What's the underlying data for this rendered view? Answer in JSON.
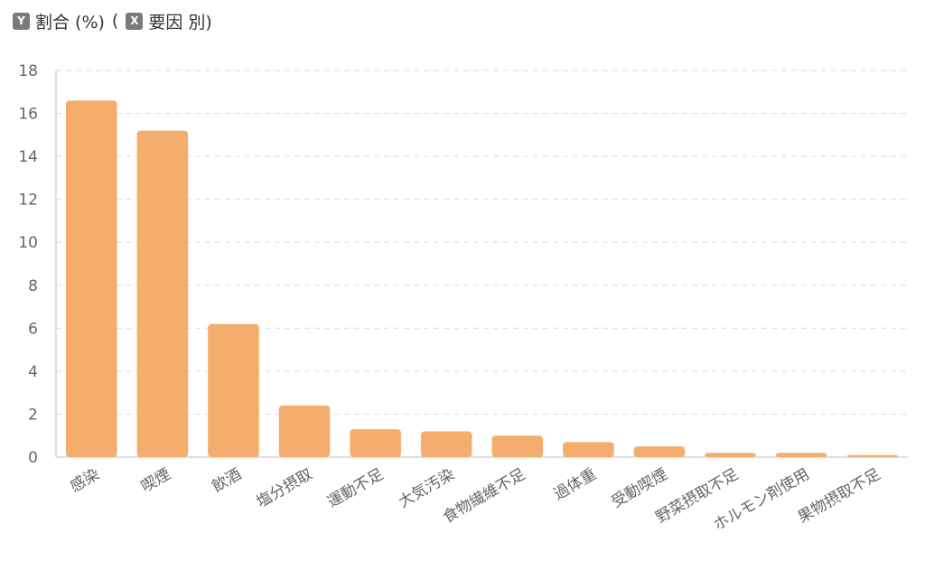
{
  "header": {
    "y_badge": "Y",
    "y_label": "割合 (%)",
    "open_paren": "(",
    "x_badge": "X",
    "x_label": "要因 別)"
  },
  "colors": {
    "bar": "#F5AD6E",
    "grid": "#E0E0E0",
    "axis": "#CCCCCC"
  },
  "chart_data": {
    "type": "bar",
    "title": "",
    "xlabel": "要因 別",
    "ylabel": "割合 (%)",
    "ylim": [
      0,
      18
    ],
    "yticks": [
      0,
      2,
      4,
      6,
      8,
      10,
      12,
      14,
      16,
      18
    ],
    "grid": true,
    "categories": [
      "感染",
      "喫煙",
      "飲酒",
      "塩分摂取",
      "運動不足",
      "大気汚染",
      "食物繊維不足",
      "過体重",
      "受動喫煙",
      "野菜摂取不足",
      "ホルモン剤使用",
      "果物摂取不足"
    ],
    "values": [
      16.6,
      15.2,
      6.2,
      2.4,
      1.3,
      1.2,
      1.0,
      0.7,
      0.5,
      0.2,
      0.2,
      0.1
    ]
  }
}
